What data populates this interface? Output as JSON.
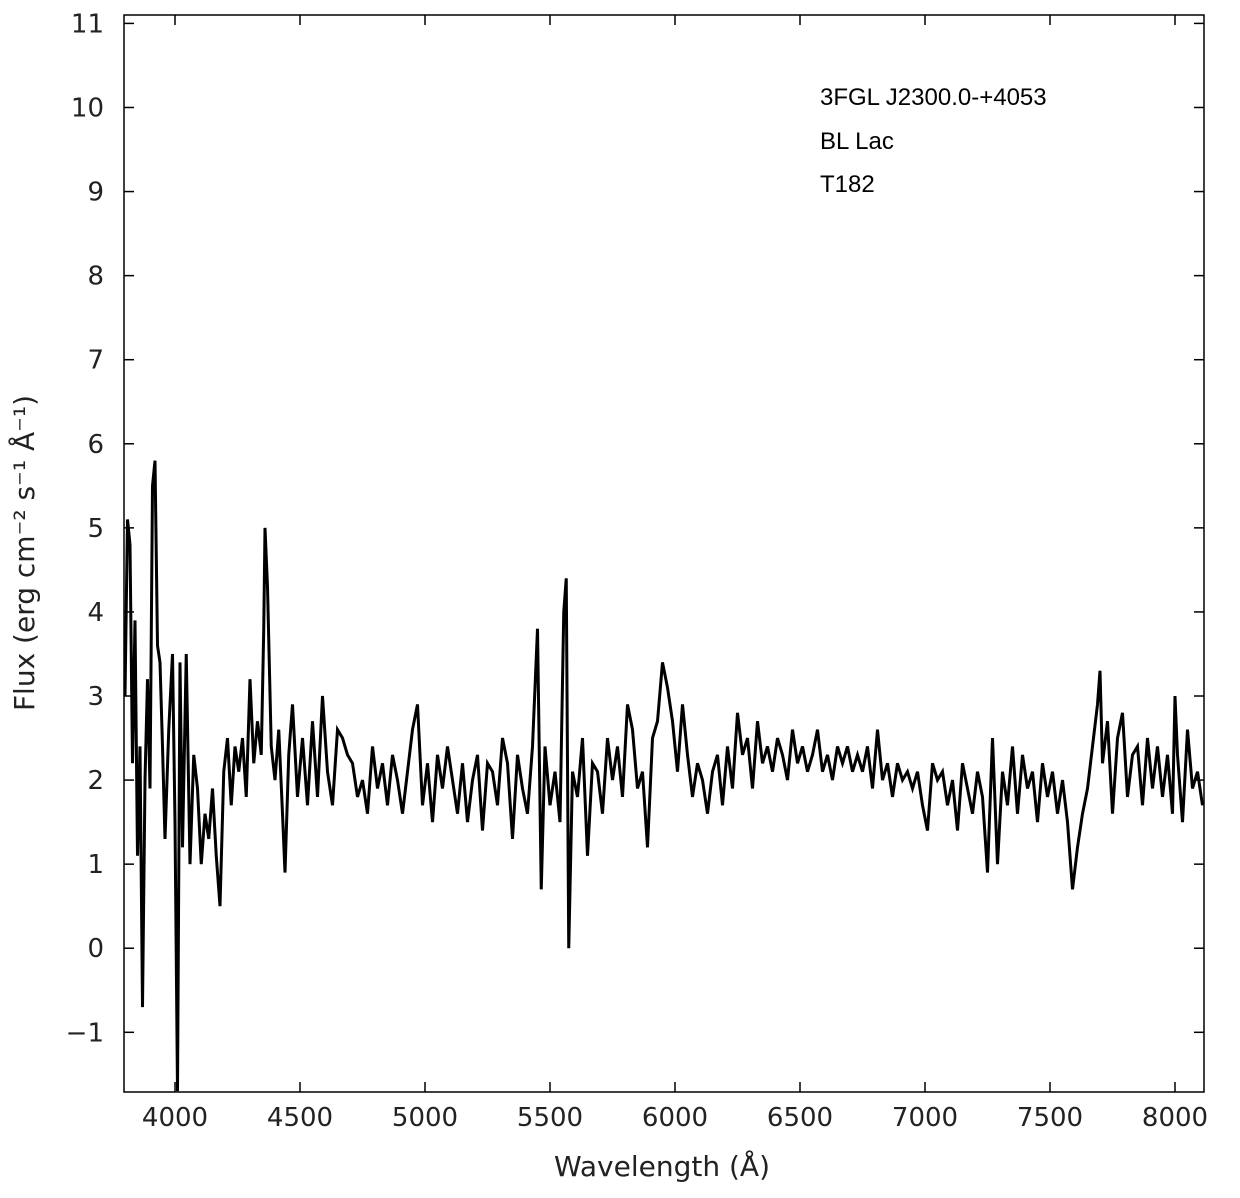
{
  "chart_data": {
    "type": "line",
    "x_label": "Wavelength (Å)",
    "y_label": "Flux (erg cm⁻² s⁻¹ Å⁻¹)",
    "annotations": [
      "3FGL J2300.0-+4053",
      "BL Lac",
      "T182"
    ],
    "color": "#000000",
    "xlim": [
      3796,
      8116
    ],
    "ylim": [
      -1.71,
      11.1
    ],
    "xticks": [
      4000,
      4500,
      5000,
      5500,
      6000,
      6500,
      7000,
      7500,
      8000
    ],
    "yticks": [
      {
        "value": -1,
        "label": "−1"
      },
      0,
      1,
      2,
      3,
      4,
      5,
      6,
      7,
      8,
      9,
      10,
      11
    ],
    "x": [
      3800,
      3810,
      3820,
      3830,
      3840,
      3850,
      3860,
      3870,
      3880,
      3890,
      3900,
      3910,
      3920,
      3930,
      3940,
      3950,
      3960,
      3975,
      3990,
      4000,
      4010,
      4020,
      4030,
      4045,
      4060,
      4075,
      4090,
      4105,
      4120,
      4135,
      4150,
      4165,
      4180,
      4195,
      4210,
      4225,
      4240,
      4255,
      4270,
      4285,
      4300,
      4315,
      4330,
      4345,
      4355,
      4360,
      4370,
      4385,
      4400,
      4415,
      4430,
      4440,
      4455,
      4470,
      4490,
      4510,
      4530,
      4550,
      4570,
      4590,
      4610,
      4630,
      4650,
      4670,
      4690,
      4710,
      4730,
      4750,
      4770,
      4790,
      4810,
      4830,
      4850,
      4870,
      4890,
      4910,
      4930,
      4950,
      4970,
      4990,
      5010,
      5030,
      5050,
      5070,
      5090,
      5110,
      5130,
      5150,
      5170,
      5190,
      5210,
      5230,
      5250,
      5270,
      5290,
      5310,
      5330,
      5350,
      5370,
      5390,
      5410,
      5430,
      5450,
      5465,
      5480,
      5500,
      5520,
      5540,
      5555,
      5565,
      5575,
      5590,
      5610,
      5630,
      5650,
      5670,
      5690,
      5710,
      5730,
      5750,
      5770,
      5790,
      5810,
      5830,
      5850,
      5870,
      5890,
      5910,
      5930,
      5950,
      5970,
      5990,
      6010,
      6030,
      6050,
      6070,
      6090,
      6110,
      6130,
      6150,
      6170,
      6190,
      6210,
      6230,
      6250,
      6270,
      6290,
      6310,
      6330,
      6350,
      6370,
      6390,
      6410,
      6430,
      6450,
      6470,
      6490,
      6510,
      6530,
      6550,
      6570,
      6590,
      6610,
      6630,
      6650,
      6670,
      6690,
      6710,
      6730,
      6750,
      6770,
      6790,
      6810,
      6830,
      6850,
      6870,
      6890,
      6910,
      6930,
      6950,
      6970,
      6990,
      7010,
      7030,
      7050,
      7070,
      7090,
      7110,
      7130,
      7150,
      7170,
      7190,
      7210,
      7230,
      7250,
      7270,
      7290,
      7310,
      7330,
      7350,
      7370,
      7390,
      7410,
      7430,
      7450,
      7470,
      7490,
      7510,
      7530,
      7550,
      7570,
      7590,
      7610,
      7630,
      7650,
      7670,
      7690,
      7700,
      7710,
      7730,
      7750,
      7770,
      7790,
      7810,
      7830,
      7850,
      7870,
      7890,
      7910,
      7930,
      7950,
      7970,
      7990,
      8000,
      8010,
      8030,
      8050,
      8070,
      8090,
      8110
    ],
    "values": [
      3.0,
      5.1,
      4.8,
      2.2,
      3.9,
      1.1,
      2.4,
      -0.7,
      2.0,
      3.2,
      1.9,
      5.5,
      5.8,
      3.6,
      3.4,
      2.4,
      1.3,
      2.6,
      3.5,
      1.5,
      -1.7,
      3.4,
      1.2,
      3.5,
      1.0,
      2.3,
      1.9,
      1.0,
      1.6,
      1.3,
      1.9,
      1.1,
      0.5,
      2.1,
      2.5,
      1.7,
      2.4,
      2.1,
      2.5,
      1.8,
      3.2,
      2.2,
      2.7,
      2.3,
      3.8,
      5.0,
      4.3,
      2.4,
      2.0,
      2.6,
      1.6,
      0.9,
      2.3,
      2.9,
      1.8,
      2.5,
      1.7,
      2.7,
      1.8,
      3.0,
      2.1,
      1.7,
      2.6,
      2.5,
      2.3,
      2.2,
      1.8,
      2.0,
      1.6,
      2.4,
      1.9,
      2.2,
      1.7,
      2.3,
      2.0,
      1.6,
      2.1,
      2.6,
      2.9,
      1.7,
      2.2,
      1.5,
      2.3,
      1.9,
      2.4,
      2.0,
      1.6,
      2.2,
      1.5,
      2.0,
      2.3,
      1.4,
      2.2,
      2.1,
      1.7,
      2.5,
      2.2,
      1.3,
      2.3,
      1.9,
      1.6,
      2.4,
      3.8,
      0.7,
      2.4,
      1.7,
      2.1,
      1.5,
      4.0,
      4.4,
      0.0,
      2.1,
      1.8,
      2.5,
      1.1,
      2.2,
      2.1,
      1.6,
      2.5,
      2.0,
      2.4,
      1.8,
      2.9,
      2.6,
      1.9,
      2.1,
      1.2,
      2.5,
      2.7,
      3.4,
      3.1,
      2.7,
      2.1,
      2.9,
      2.3,
      1.8,
      2.2,
      2.0,
      1.6,
      2.1,
      2.3,
      1.7,
      2.4,
      1.9,
      2.8,
      2.3,
      2.5,
      1.9,
      2.7,
      2.2,
      2.4,
      2.1,
      2.5,
      2.3,
      2.0,
      2.6,
      2.2,
      2.4,
      2.1,
      2.3,
      2.6,
      2.1,
      2.3,
      2.0,
      2.4,
      2.2,
      2.4,
      2.1,
      2.3,
      2.1,
      2.4,
      1.9,
      2.6,
      2.0,
      2.2,
      1.8,
      2.2,
      2.0,
      2.1,
      1.9,
      2.1,
      1.7,
      1.4,
      2.2,
      2.0,
      2.1,
      1.7,
      2.0,
      1.4,
      2.2,
      1.9,
      1.6,
      2.1,
      1.8,
      0.9,
      2.5,
      1.0,
      2.1,
      1.7,
      2.4,
      1.6,
      2.3,
      1.9,
      2.1,
      1.5,
      2.2,
      1.8,
      2.1,
      1.6,
      2.0,
      1.5,
      0.7,
      1.2,
      1.6,
      1.9,
      2.4,
      2.9,
      3.3,
      2.2,
      2.7,
      1.6,
      2.5,
      2.8,
      1.8,
      2.3,
      2.4,
      1.7,
      2.5,
      1.9,
      2.4,
      1.8,
      2.3,
      1.6,
      3.0,
      2.3,
      1.5,
      2.6,
      1.9,
      2.1,
      1.7
    ]
  }
}
